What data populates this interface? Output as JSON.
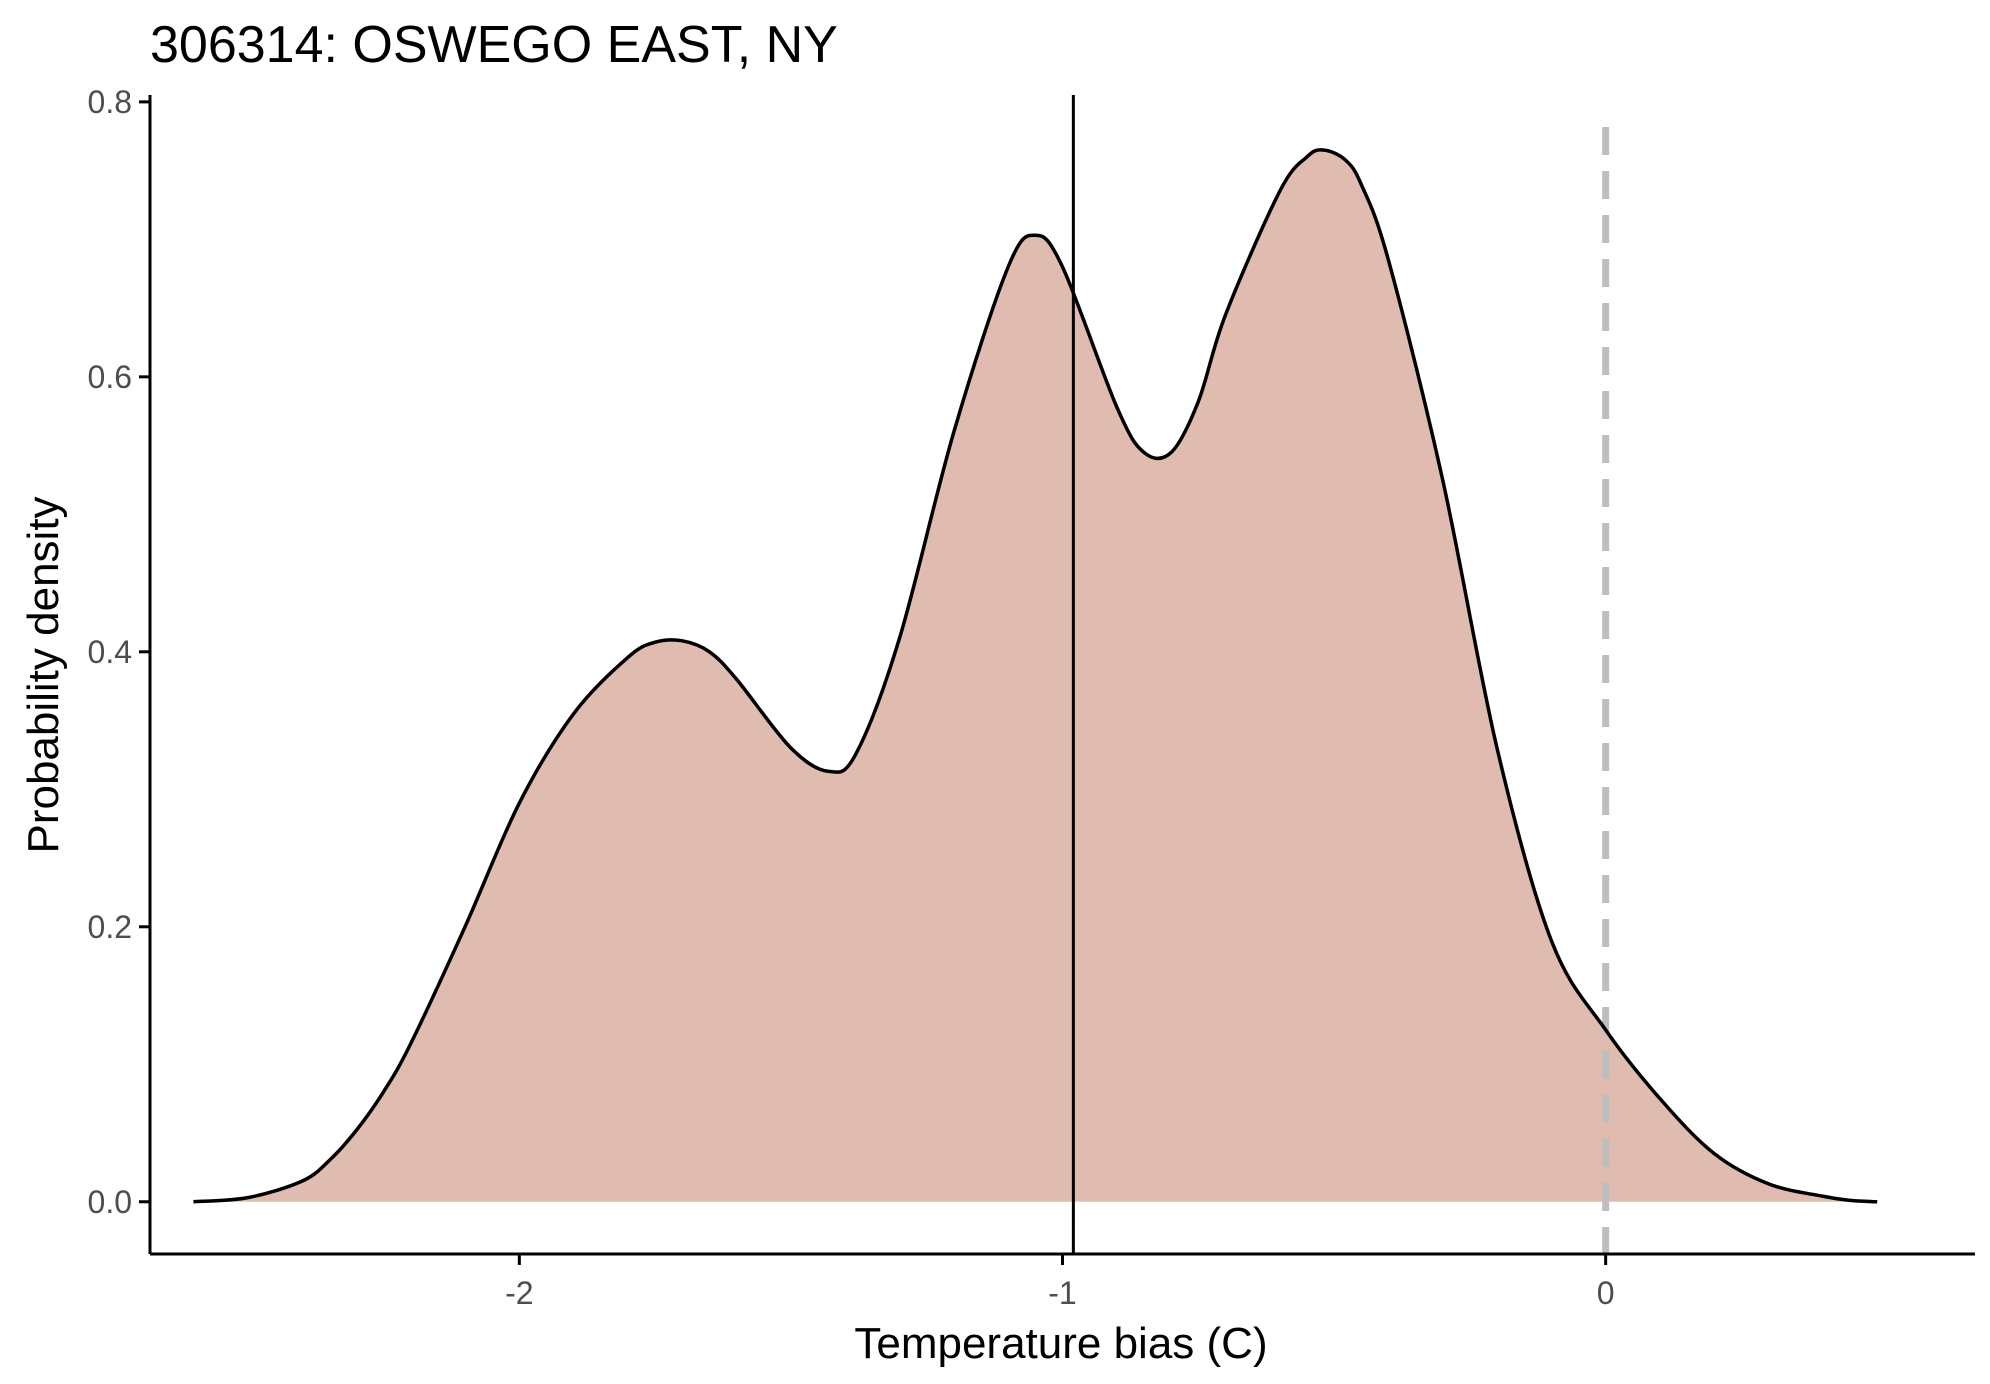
{
  "chart_data": {
    "type": "area",
    "title": "306314: OSWEGO EAST, NY",
    "xlabel": "Temperature bias (C)",
    "ylabel": "Probability density",
    "xlim": [
      -2.68,
      0.68
    ],
    "ylim": [
      -0.038,
      0.805
    ],
    "x_ticks": [
      -2,
      -1,
      0
    ],
    "x_tick_labels": [
      "-2",
      "-1",
      "0"
    ],
    "y_ticks": [
      0.0,
      0.2,
      0.4,
      0.6,
      0.8
    ],
    "y_tick_labels": [
      "0.0",
      "0.2",
      "0.4",
      "0.6",
      "0.8"
    ],
    "grid": false,
    "legend": "none",
    "fill_color": "#e0bbb0",
    "line_color": "#000000",
    "reference_line_color": "#bebebe",
    "mean_line_x": -0.98,
    "reference_line_x": 0,
    "series": [
      {
        "x": [
          -2.6,
          -2.5,
          -2.4,
          -2.35,
          -2.3,
          -2.25,
          -2.2,
          -2.1,
          -2.0,
          -1.9,
          -1.8,
          -1.75,
          -1.7,
          -1.65,
          -1.6,
          -1.5,
          -1.43,
          -1.38,
          -1.3,
          -1.2,
          -1.1,
          -1.05,
          -1.0,
          -0.9,
          -0.85,
          -0.8,
          -0.75,
          -0.7,
          -0.6,
          -0.55,
          -0.52,
          -0.48,
          -0.45,
          -0.4,
          -0.3,
          -0.2,
          -0.1,
          0.0,
          0.1,
          0.2,
          0.3,
          0.4,
          0.45,
          0.5
        ],
        "y": [
          0.0,
          0.003,
          0.015,
          0.03,
          0.052,
          0.08,
          0.115,
          0.2,
          0.29,
          0.355,
          0.396,
          0.407,
          0.408,
          0.4,
          0.38,
          0.33,
          0.313,
          0.326,
          0.41,
          0.56,
          0.68,
          0.703,
          0.68,
          0.578,
          0.545,
          0.545,
          0.582,
          0.645,
          0.735,
          0.76,
          0.765,
          0.758,
          0.74,
          0.685,
          0.525,
          0.33,
          0.19,
          0.125,
          0.075,
          0.035,
          0.013,
          0.004,
          0.001,
          0.0
        ]
      }
    ]
  }
}
